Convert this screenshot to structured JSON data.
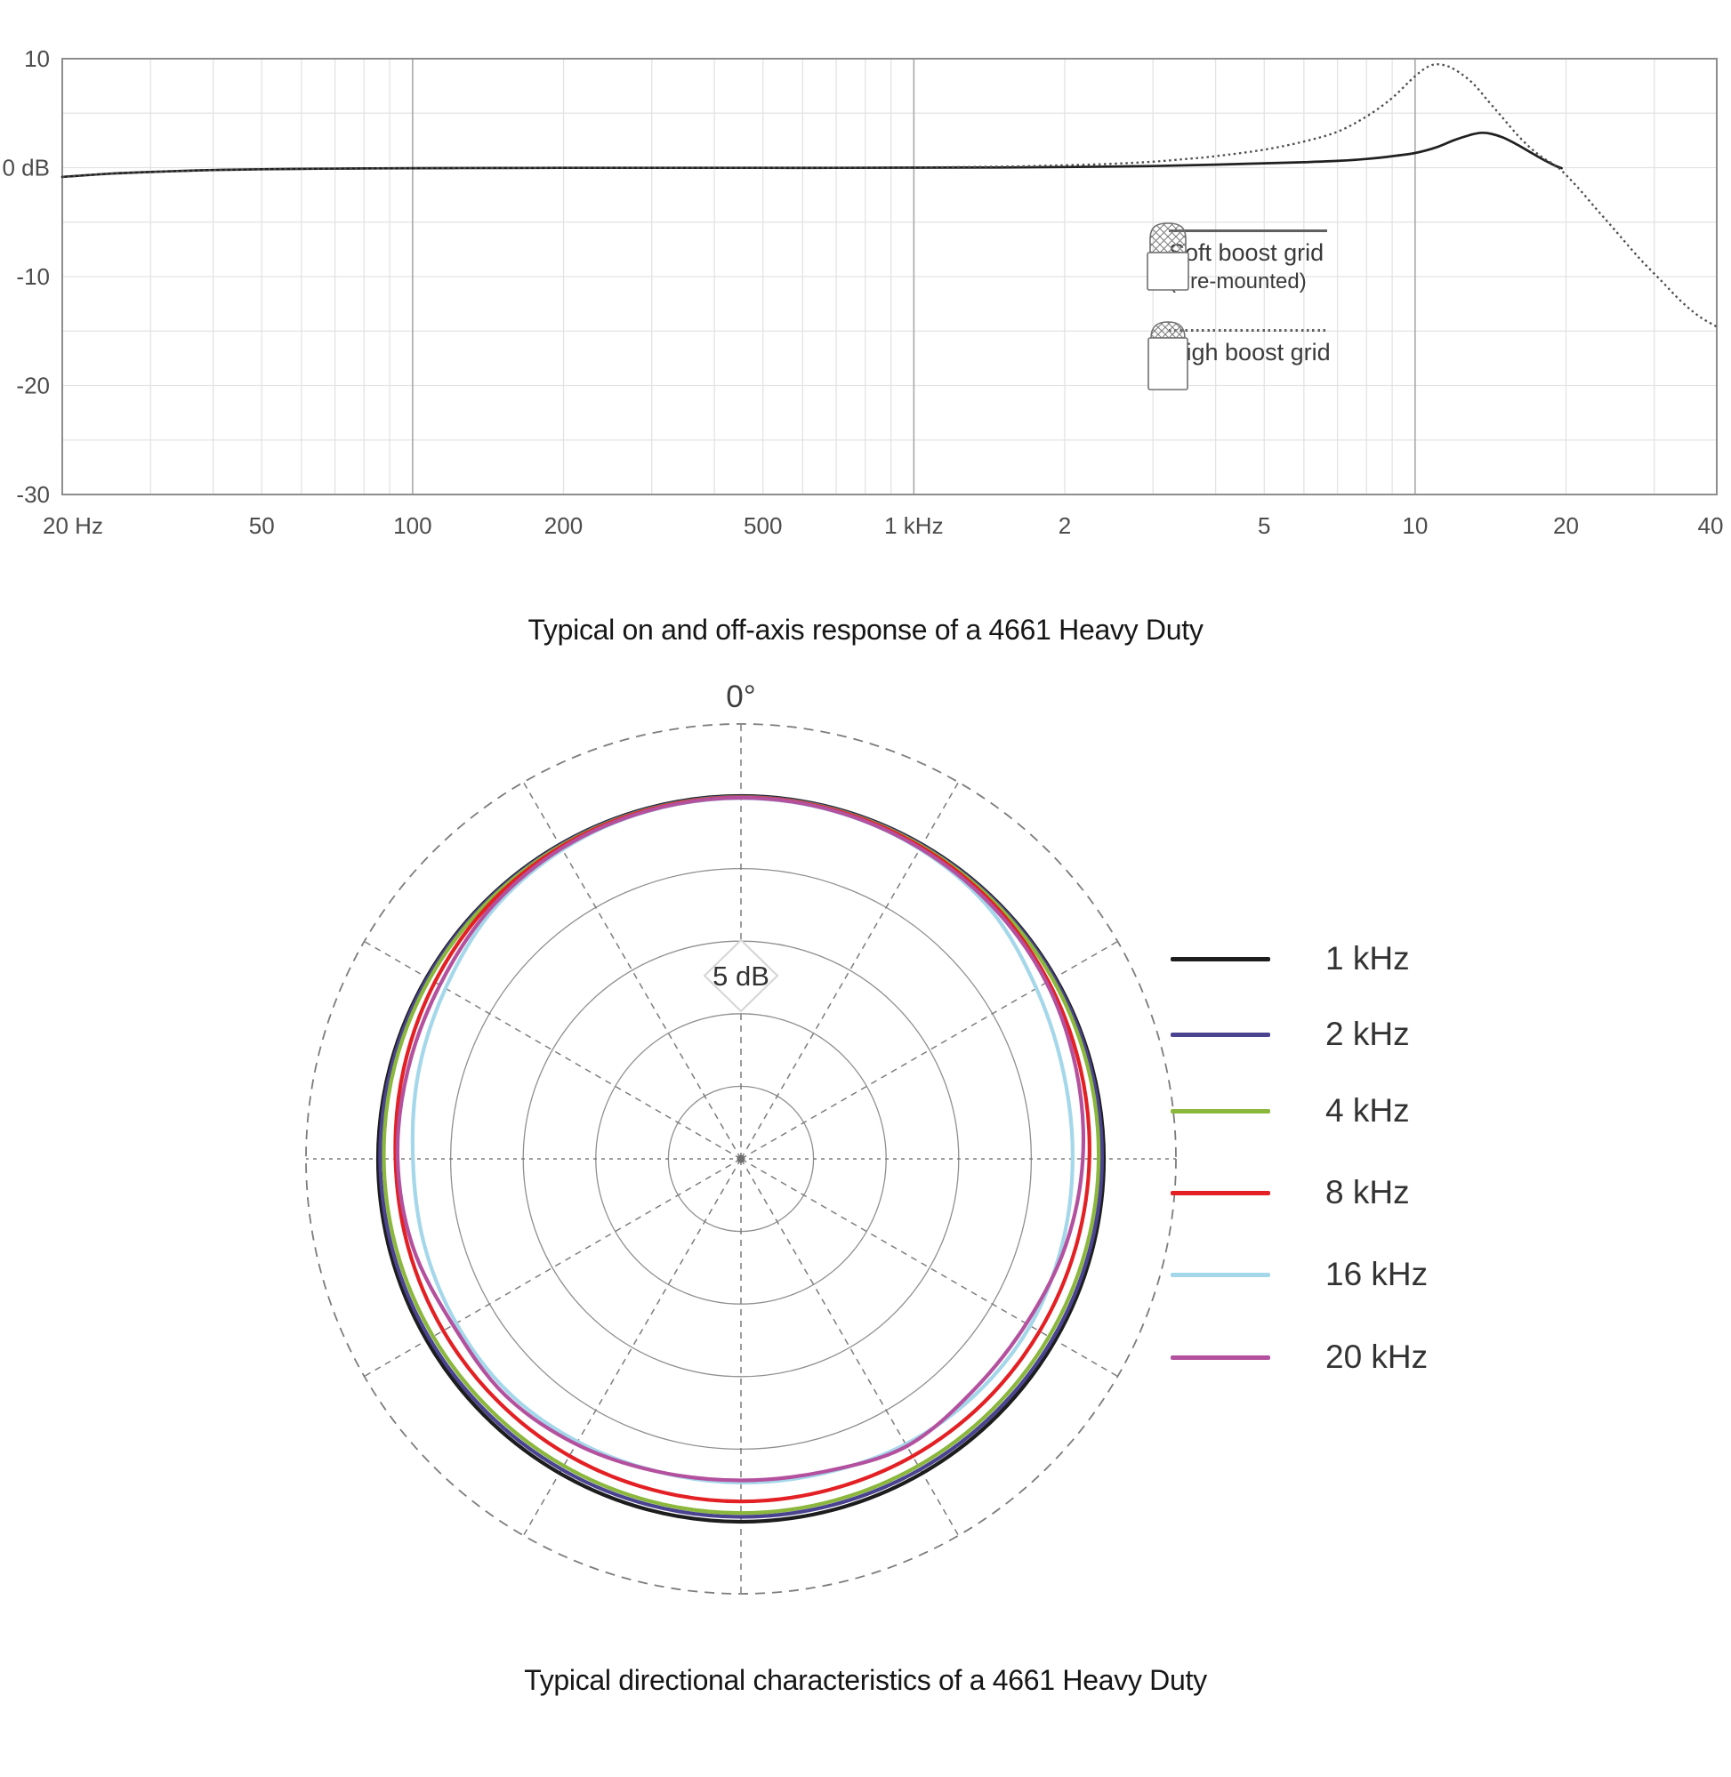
{
  "chart_data": [
    {
      "type": "line",
      "title": "Typical on and off-axis response of a 4661 Heavy Duty",
      "x_axis": {
        "scale": "log",
        "unit": "Hz",
        "min": 20,
        "max": 40000,
        "ticks": [
          {
            "value": 20,
            "label": "20 Hz"
          },
          {
            "value": 50,
            "label": "50"
          },
          {
            "value": 100,
            "label": "100"
          },
          {
            "value": 200,
            "label": "200"
          },
          {
            "value": 500,
            "label": "500"
          },
          {
            "value": 1000,
            "label": "1 kHz"
          },
          {
            "value": 2000,
            "label": "2"
          },
          {
            "value": 5000,
            "label": "5"
          },
          {
            "value": 10000,
            "label": "10"
          },
          {
            "value": 20000,
            "label": "20"
          },
          {
            "value": 40000,
            "label": "40"
          }
        ],
        "major_gridlines": [
          100,
          1000,
          10000
        ],
        "minor_gridlines": [
          30,
          40,
          50,
          60,
          70,
          80,
          90,
          200,
          300,
          400,
          500,
          600,
          700,
          800,
          900,
          2000,
          3000,
          4000,
          5000,
          6000,
          7000,
          8000,
          9000,
          20000,
          30000
        ]
      },
      "y_axis": {
        "unit": "dB",
        "min": -30,
        "max": 10,
        "ticks": [
          {
            "value": 10,
            "label": "10"
          },
          {
            "value": 0,
            "label": "0 dB"
          },
          {
            "value": -10,
            "label": "-10"
          },
          {
            "value": -20,
            "label": "-20"
          },
          {
            "value": -30,
            "label": "-30"
          }
        ],
        "minor_step_db": 5
      },
      "legend": [
        {
          "name": "Soft boost grid",
          "note": "(Pre-mounted)",
          "line_style": "solid",
          "icon": "microphone-soft-boost-grid-icon"
        },
        {
          "name": "High boost grid",
          "note": "",
          "line_style": "dotted",
          "icon": "microphone-high-boost-grid-icon"
        }
      ],
      "series": [
        {
          "name": "Soft boost grid",
          "style": "solid",
          "color": "#202020",
          "points": [
            [
              20,
              -0.85
            ],
            [
              25,
              -0.55
            ],
            [
              32,
              -0.35
            ],
            [
              40,
              -0.22
            ],
            [
              50,
              -0.15
            ],
            [
              65,
              -0.1
            ],
            [
              80,
              -0.07
            ],
            [
              100,
              -0.05
            ],
            [
              150,
              -0.03
            ],
            [
              200,
              -0.02
            ],
            [
              300,
              -0.02
            ],
            [
              500,
              -0.02
            ],
            [
              700,
              -0.02
            ],
            [
              1000,
              0
            ],
            [
              1500,
              0.02
            ],
            [
              2000,
              0.06
            ],
            [
              3000,
              0.15
            ],
            [
              4000,
              0.28
            ],
            [
              5000,
              0.4
            ],
            [
              6000,
              0.5
            ],
            [
              7000,
              0.62
            ],
            [
              8000,
              0.8
            ],
            [
              9000,
              1.05
            ],
            [
              10000,
              1.35
            ],
            [
              11000,
              1.85
            ],
            [
              12000,
              2.55
            ],
            [
              13000,
              3.05
            ],
            [
              13600,
              3.2
            ],
            [
              14200,
              3.1
            ],
            [
              15000,
              2.75
            ],
            [
              16000,
              2.1
            ],
            [
              17000,
              1.4
            ],
            [
              18000,
              0.75
            ],
            [
              19000,
              0.2
            ],
            [
              19600,
              -0.05
            ]
          ]
        },
        {
          "name": "High boost grid",
          "style": "dotted",
          "color": "#4d4d4d",
          "points": [
            [
              20,
              -0.85
            ],
            [
              25,
              -0.55
            ],
            [
              32,
              -0.35
            ],
            [
              40,
              -0.22
            ],
            [
              50,
              -0.15
            ],
            [
              65,
              -0.1
            ],
            [
              80,
              -0.07
            ],
            [
              100,
              -0.05
            ],
            [
              150,
              -0.03
            ],
            [
              200,
              -0.02
            ],
            [
              300,
              -0.02
            ],
            [
              500,
              -0.02
            ],
            [
              700,
              -0.01
            ],
            [
              1000,
              0.02
            ],
            [
              1500,
              0.1
            ],
            [
              2000,
              0.22
            ],
            [
              2500,
              0.36
            ],
            [
              3000,
              0.55
            ],
            [
              3500,
              0.8
            ],
            [
              4000,
              1.05
            ],
            [
              5000,
              1.65
            ],
            [
              6000,
              2.4
            ],
            [
              7000,
              3.3
            ],
            [
              8000,
              4.7
            ],
            [
              9000,
              6.4
            ],
            [
              10000,
              8.4
            ],
            [
              10700,
              9.35
            ],
            [
              11300,
              9.45
            ],
            [
              12000,
              9.0
            ],
            [
              13000,
              7.8
            ],
            [
              14000,
              6.1
            ],
            [
              15000,
              4.5
            ],
            [
              16000,
              3.0
            ],
            [
              17000,
              1.8
            ],
            [
              18000,
              0.9
            ],
            [
              19300,
              0.0
            ],
            [
              21000,
              -1.7
            ],
            [
              23000,
              -3.8
            ],
            [
              25000,
              -5.7
            ],
            [
              28000,
              -8.3
            ],
            [
              31000,
              -10.4
            ],
            [
              34000,
              -12.3
            ],
            [
              37000,
              -13.7
            ],
            [
              40000,
              -14.6
            ]
          ]
        }
      ]
    },
    {
      "type": "polar",
      "title": "Typical directional characteristics of a 4661 Heavy Duty",
      "zero_label": "0°",
      "ring_label": "5 dB",
      "ring_step_db": 5,
      "rings": 5,
      "radial_line_step_deg": 30,
      "angle_samples_deg_step": 15,
      "series": [
        {
          "name": "1 kHz",
          "color": "#1d1d1d",
          "deficit_db": [
            0,
            0,
            0,
            0,
            0,
            0,
            0,
            0,
            0,
            0,
            0,
            0,
            0,
            0,
            0,
            0,
            0,
            0,
            0,
            0,
            0,
            0,
            0,
            0
          ]
        },
        {
          "name": "2 kHz",
          "color": "#4a4390",
          "deficit_db": [
            0.05,
            0.05,
            0.05,
            0.06,
            0.08,
            0.1,
            0.13,
            0.17,
            0.21,
            0.26,
            0.3,
            0.33,
            0.34,
            0.33,
            0.3,
            0.27,
            0.23,
            0.19,
            0.15,
            0.11,
            0.08,
            0.06,
            0.05,
            0.05
          ]
        },
        {
          "name": "4 kHz",
          "color": "#8ab73c",
          "deficit_db": [
            0.08,
            0.09,
            0.11,
            0.15,
            0.21,
            0.28,
            0.36,
            0.44,
            0.5,
            0.55,
            0.58,
            0.6,
            0.6,
            0.6,
            0.58,
            0.56,
            0.52,
            0.46,
            0.4,
            0.3,
            0.22,
            0.15,
            0.11,
            0.09
          ]
        },
        {
          "name": "8 kHz",
          "color": "#e32024",
          "deficit_db": [
            0.1,
            0.12,
            0.18,
            0.3,
            0.55,
            0.8,
            1.0,
            1.15,
            1.25,
            1.3,
            1.35,
            1.4,
            1.4,
            1.4,
            1.37,
            1.35,
            1.32,
            1.28,
            1.2,
            0.95,
            0.65,
            0.35,
            0.18,
            0.12
          ]
        },
        {
          "name": "16 kHz",
          "color": "#a4d7ea",
          "deficit_db": [
            0.15,
            0.2,
            0.35,
            0.7,
            1.5,
            2.0,
            2.15,
            2.1,
            2.0,
            2.1,
            2.3,
            2.6,
            2.7,
            2.7,
            2.5,
            2.3,
            2.35,
            2.4,
            2.4,
            2.0,
            1.5,
            0.8,
            0.4,
            0.2
          ]
        },
        {
          "name": "20 kHz",
          "color": "#b4519e",
          "deficit_db": [
            0.12,
            0.18,
            0.3,
            0.45,
            0.7,
            1.1,
            1.45,
            1.85,
            2.3,
            2.4,
            2.15,
            2.7,
            2.85,
            2.7,
            2.3,
            2.0,
            2.1,
            1.6,
            1.35,
            1.25,
            1.05,
            0.6,
            0.3,
            0.18
          ]
        }
      ]
    }
  ]
}
